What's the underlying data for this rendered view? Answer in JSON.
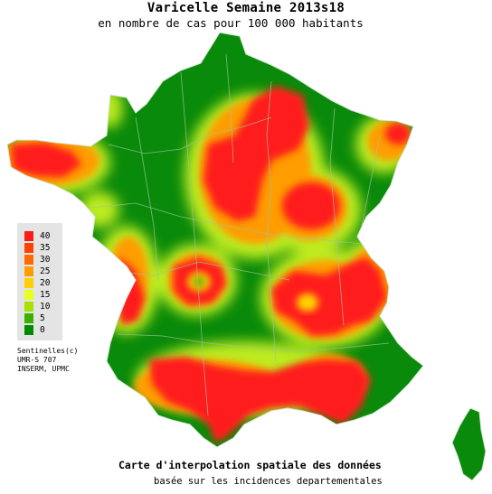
{
  "title": "Varicelle Semaine 2013s18",
  "subtitle": "en nombre de cas pour 100 000 habitants",
  "legend": {
    "items": [
      {
        "label": "40",
        "color": "#ff1a1a"
      },
      {
        "label": "35",
        "color": "#ff4000"
      },
      {
        "label": "30",
        "color": "#ff6a00"
      },
      {
        "label": "25",
        "color": "#ff9c00"
      },
      {
        "label": "20",
        "color": "#ffd000"
      },
      {
        "label": "15",
        "color": "#e8ff20"
      },
      {
        "label": "10",
        "color": "#a8e000"
      },
      {
        "label": "5",
        "color": "#3cb000"
      },
      {
        "label": "0",
        "color": "#008a00"
      }
    ]
  },
  "credits": [
    "Sentinelles(c)",
    "UMR-S 707",
    "INSERM, UPMC"
  ],
  "footer": {
    "line1": "Carte d'interpolation spatiale des données",
    "line2": "basée sur les incidences departementales"
  },
  "map_colors": {
    "base": "#0a8a0a",
    "high": "#ff1a1a",
    "mid": "#ff9c00",
    "low": "#e8ff20",
    "border": "#b9d4b9"
  }
}
